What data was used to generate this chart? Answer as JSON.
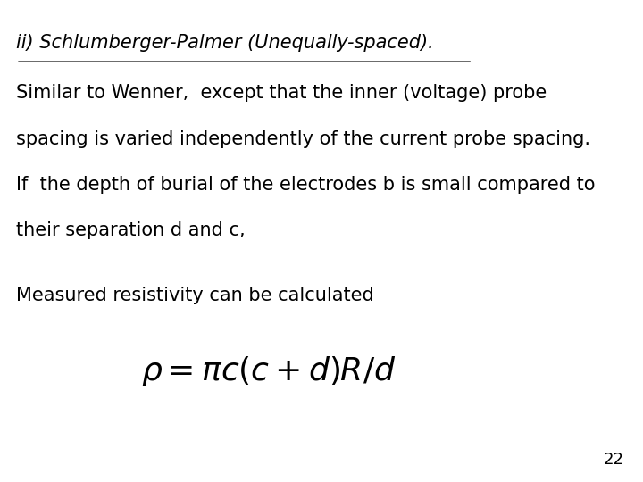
{
  "background_color": "#ffffff",
  "title_line": "ii) Schlumberger-Palmer (Unequally-spaced).",
  "body_lines": [
    "Similar to Wenner,  except that the inner (voltage) probe",
    "spacing is varied independently of the current probe spacing.",
    "If  the depth of burial of the electrodes b is small compared to",
    "their separation d and c,"
  ],
  "measured_line": "Measured resistivity can be calculated",
  "formula": "$\\rho = \\pi c(c+d)R/d$",
  "page_number": "22",
  "title_fontsize": 15,
  "body_fontsize": 15,
  "formula_fontsize": 26,
  "page_fontsize": 13
}
